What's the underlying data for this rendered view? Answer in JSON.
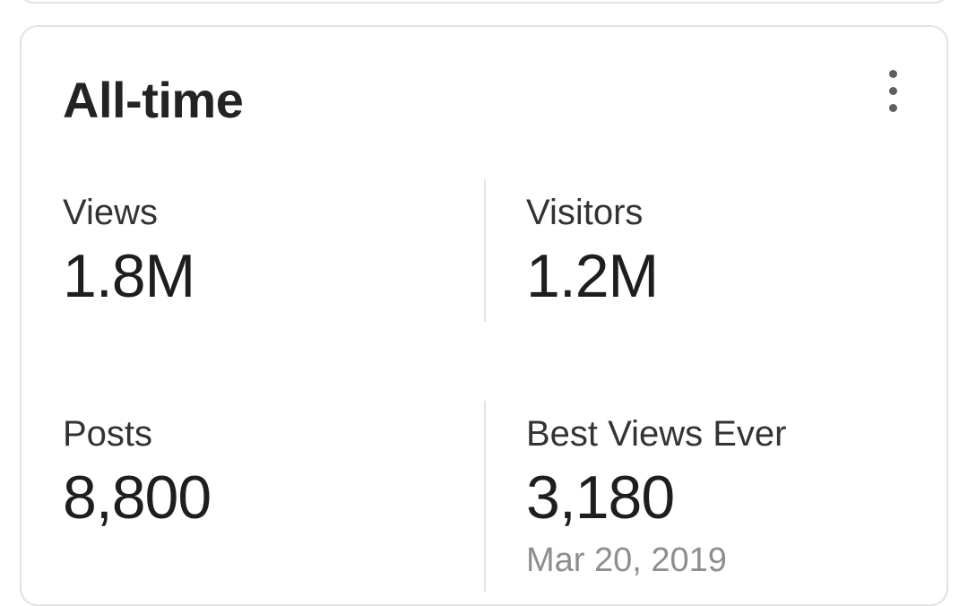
{
  "card": {
    "title": "All-time",
    "menu_icon": "kebab-vertical",
    "stats": [
      {
        "label": "Views",
        "value": "1.8M"
      },
      {
        "label": "Visitors",
        "value": "1.2M"
      },
      {
        "label": "Posts",
        "value": "8,800"
      },
      {
        "label": "Best Views Ever",
        "value": "3,180",
        "date": "Mar 20, 2019"
      }
    ]
  },
  "colors": {
    "page_background": "#ffffff",
    "card_background": "#ffffff",
    "card_border": "#e3e3e3",
    "divider": "#e3e3e3",
    "title_text": "#232323",
    "label_text": "#333333",
    "value_text": "#1e1e1e",
    "date_text": "#8e8e8e",
    "menu_dots": "#5f5f5f"
  }
}
